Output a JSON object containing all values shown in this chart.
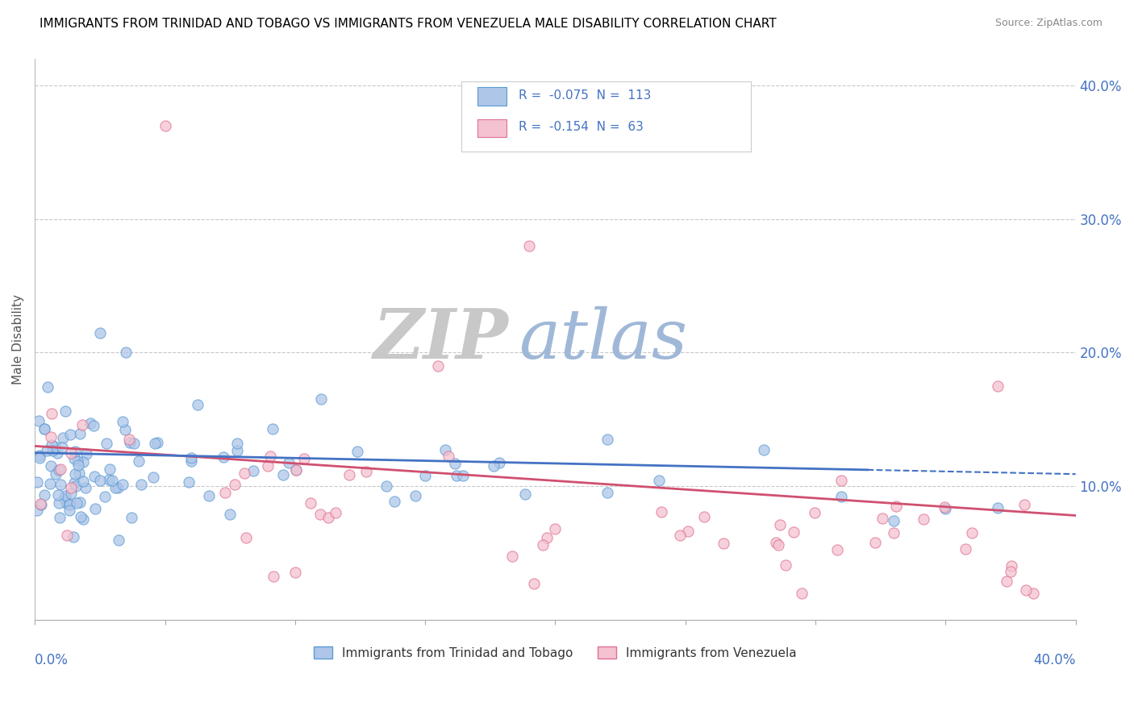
{
  "title": "IMMIGRANTS FROM TRINIDAD AND TOBAGO VS IMMIGRANTS FROM VENEZUELA MALE DISABILITY CORRELATION CHART",
  "source": "Source: ZipAtlas.com",
  "ylabel": "Male Disability",
  "xlim": [
    0.0,
    0.4
  ],
  "ylim": [
    0.0,
    0.42
  ],
  "yticks": [
    0.1,
    0.2,
    0.3,
    0.4
  ],
  "series1_label": "Immigrants from Trinidad and Tobago",
  "series1_fill": "#aec6e8",
  "series1_edge": "#5b9bd5",
  "series1_line": "#4472c4",
  "series2_label": "Immigrants from Venezuela",
  "series2_fill": "#f4c2d0",
  "series2_edge": "#e07090",
  "series2_line": "#d05070",
  "series1_R": -0.075,
  "series1_N": 113,
  "series2_R": -0.154,
  "series2_N": 63,
  "legend_color": "#4472c4",
  "watermark_zip_color": "#c8c8c8",
  "watermark_atlas_color": "#a0b8d8",
  "background_color": "#ffffff",
  "grid_color": "#c8c8c8",
  "title_fontsize": 11,
  "axis_color": "#4472c4"
}
